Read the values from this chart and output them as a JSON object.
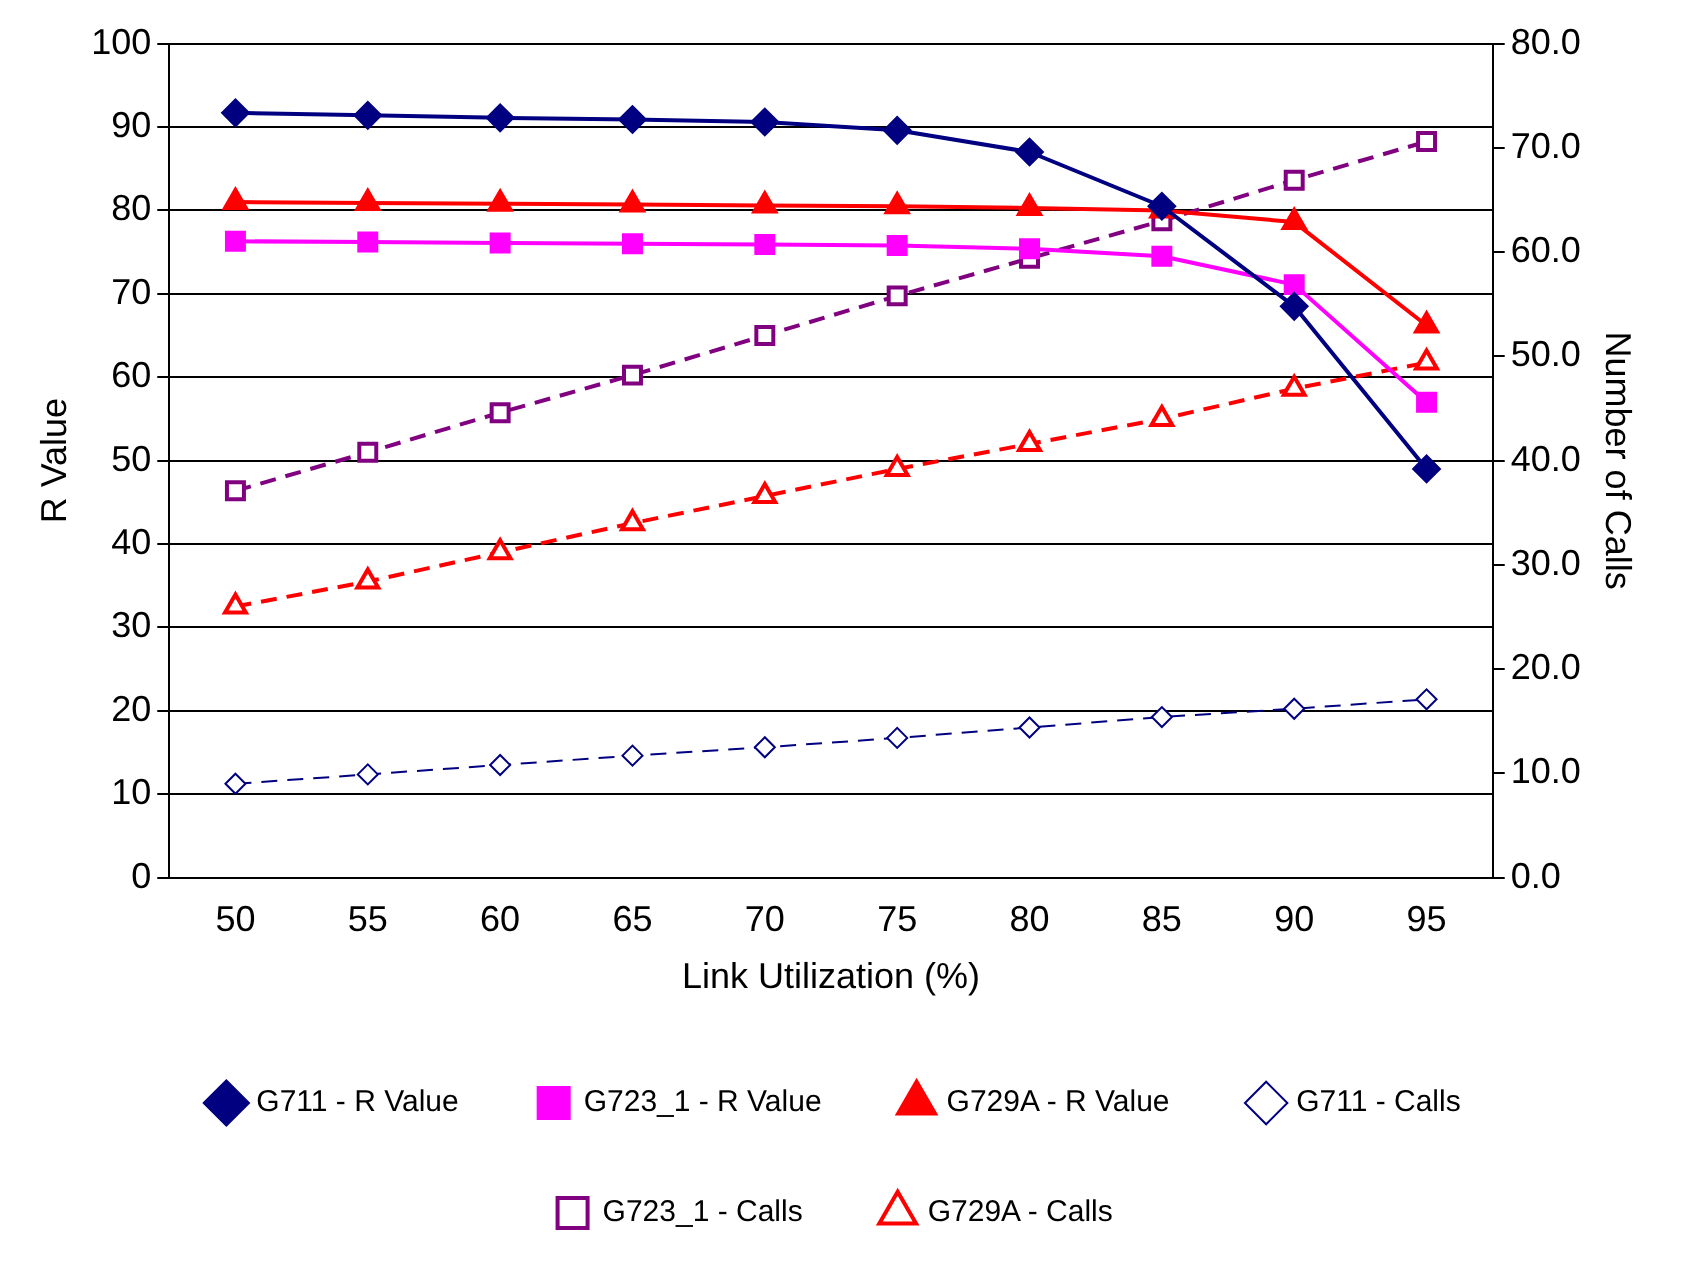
{
  "chart_data": {
    "type": "line",
    "xlabel": "Link Utilization (%)",
    "ylabel": "R Value",
    "y2label": "Number of Calls",
    "categories": [
      "50",
      "55",
      "60",
      "65",
      "70",
      "75",
      "80",
      "85",
      "90",
      "95"
    ],
    "ylim": [
      0,
      100
    ],
    "yticks": [
      0,
      10,
      20,
      30,
      40,
      50,
      60,
      70,
      80,
      90,
      100
    ],
    "y2lim": [
      0,
      80
    ],
    "y2ticks": [
      {
        "value": 0,
        "label": "0.0"
      },
      {
        "value": 10,
        "label": "10.0"
      },
      {
        "value": 20,
        "label": "20.0"
      },
      {
        "value": 30,
        "label": "30.0"
      },
      {
        "value": 40,
        "label": "40.0"
      },
      {
        "value": 50,
        "label": "50.0"
      },
      {
        "value": 60,
        "label": "60.0"
      },
      {
        "value": 70,
        "label": "70.0"
      },
      {
        "value": 80,
        "label": "80.0"
      }
    ],
    "grid": "y",
    "legend": "bottom",
    "series": [
      {
        "name": "G711 - R Value",
        "color": "#000080",
        "marker": "diamond",
        "line_style": "solid",
        "values": [
          91.7,
          91.4,
          91.1,
          90.9,
          90.6,
          89.6,
          87.0,
          80.5,
          68.5,
          49.0
        ]
      },
      {
        "name": "G723_1 - R Value",
        "color": "#ff00ff",
        "marker": "square",
        "line_style": "solid",
        "values": [
          76.3,
          76.2,
          76.1,
          76.0,
          75.9,
          75.8,
          75.4,
          74.5,
          71.1,
          57.0
        ]
      },
      {
        "name": "G729A - R Value",
        "color": "#ff0000",
        "marker": "triangle",
        "line_style": "solid",
        "values": [
          81.0,
          80.9,
          80.8,
          80.7,
          80.6,
          80.5,
          80.3,
          80.0,
          78.6,
          66.2
        ]
      },
      {
        "name": "G711 - Calls",
        "color": "#000080",
        "marker": "diamond",
        "line_style": "dashed",
        "axis": "y2",
        "values": [
          9.0,
          9.9,
          10.8,
          11.7,
          12.5,
          13.4,
          14.4,
          15.4,
          16.2,
          17.1
        ]
      },
      {
        "name": "G723_1 - Calls",
        "color": "#800080",
        "marker": "square",
        "line_style": "dashed",
        "axis": "y2",
        "values": [
          37.1,
          40.8,
          44.6,
          48.2,
          52.0,
          55.8,
          59.4,
          63.0,
          66.9,
          70.6
        ]
      },
      {
        "name": "G729A - Calls",
        "color": "#ff0000",
        "marker": "triangle",
        "line_style": "dashed",
        "axis": "y2",
        "values": [
          26.0,
          28.4,
          31.2,
          34.0,
          36.6,
          39.2,
          41.6,
          44.0,
          46.9,
          49.4
        ]
      }
    ]
  }
}
